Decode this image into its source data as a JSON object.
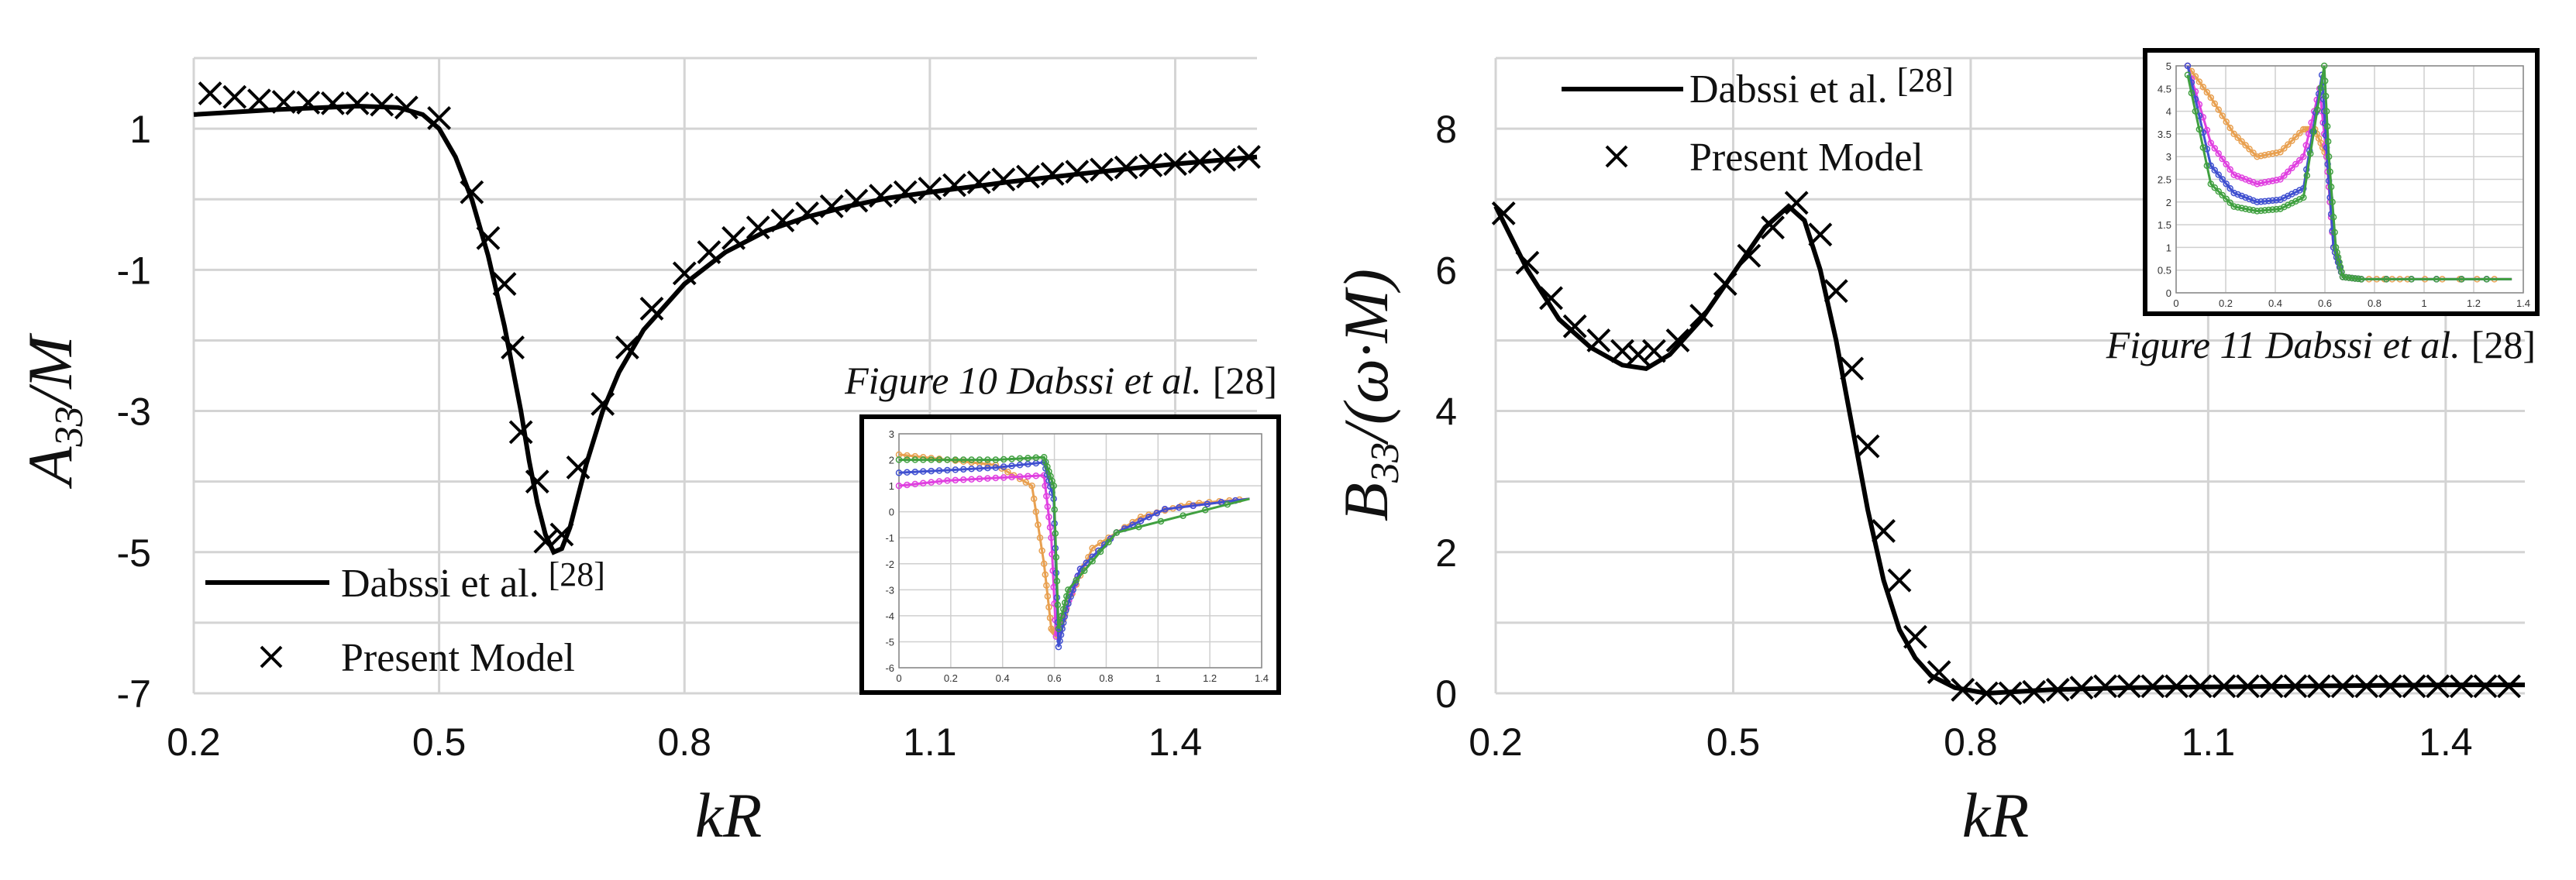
{
  "chart_data": [
    {
      "type": "line",
      "title": "",
      "xlabel": "kR",
      "ylabel": "A33/M",
      "ylabel_main": "A",
      "ylabel_sub": "33",
      "ylabel_rest": "/M",
      "xlim": [
        0.2,
        1.5
      ],
      "ylim": [
        -7,
        2
      ],
      "x_ticks": [
        0.2,
        0.5,
        0.8,
        1.1,
        1.4
      ],
      "x_tick_labels": [
        "0.2",
        "0.5",
        "0.8",
        "1.1",
        "1.4"
      ],
      "y_ticks": [
        -7,
        -5,
        -3,
        -1,
        1
      ],
      "y_tick_labels": [
        "-7",
        "-5",
        "-3",
        "-1",
        "1"
      ],
      "grid_y": [
        -7,
        -6,
        -5,
        -4,
        -3,
        -2,
        -1,
        0,
        1,
        2
      ],
      "legend_position": "bottom-left",
      "series": [
        {
          "name": "Dabssi et al. [28]",
          "name_text": "Dabssi et al.",
          "name_ref": "[28]",
          "style": "line",
          "x": [
            0.2,
            0.3,
            0.4,
            0.45,
            0.48,
            0.5,
            0.52,
            0.54,
            0.56,
            0.58,
            0.6,
            0.61,
            0.62,
            0.63,
            0.64,
            0.65,
            0.66,
            0.67,
            0.68,
            0.7,
            0.72,
            0.75,
            0.8,
            0.85,
            0.9,
            0.95,
            1.0,
            1.05,
            1.1,
            1.2,
            1.3,
            1.4,
            1.5
          ],
          "y": [
            1.2,
            1.27,
            1.32,
            1.3,
            1.2,
            1.0,
            0.6,
            0.0,
            -0.8,
            -1.8,
            -3.0,
            -3.7,
            -4.3,
            -4.75,
            -5.0,
            -4.95,
            -4.65,
            -4.2,
            -3.75,
            -3.0,
            -2.45,
            -1.85,
            -1.2,
            -0.75,
            -0.45,
            -0.25,
            -0.1,
            0.02,
            0.1,
            0.25,
            0.38,
            0.5,
            0.6
          ]
        },
        {
          "name": "Present Model",
          "style": "marker-x",
          "x": [
            0.22,
            0.25,
            0.28,
            0.31,
            0.34,
            0.37,
            0.4,
            0.43,
            0.46,
            0.5,
            0.54,
            0.56,
            0.58,
            0.59,
            0.6,
            0.62,
            0.63,
            0.65,
            0.67,
            0.7,
            0.73,
            0.76,
            0.8,
            0.83,
            0.86,
            0.89,
            0.92,
            0.95,
            0.98,
            1.01,
            1.04,
            1.07,
            1.1,
            1.13,
            1.16,
            1.19,
            1.22,
            1.25,
            1.28,
            1.31,
            1.34,
            1.37,
            1.4,
            1.43,
            1.46,
            1.49
          ],
          "y": [
            1.5,
            1.45,
            1.4,
            1.38,
            1.37,
            1.36,
            1.36,
            1.34,
            1.3,
            1.15,
            0.1,
            -0.55,
            -1.2,
            -2.1,
            -3.3,
            -4.0,
            -4.85,
            -4.75,
            -3.8,
            -2.9,
            -2.1,
            -1.55,
            -1.05,
            -0.75,
            -0.55,
            -0.4,
            -0.3,
            -0.2,
            -0.1,
            -0.02,
            0.05,
            0.1,
            0.15,
            0.2,
            0.24,
            0.28,
            0.32,
            0.36,
            0.39,
            0.42,
            0.45,
            0.48,
            0.5,
            0.53,
            0.56,
            0.6
          ]
        }
      ],
      "inset": {
        "caption_italic": "Figure 10 Dabssi et al.",
        "caption_ref": "[28]",
        "description": "embedded reference plot (Figure 10 of Dabssi et al.)",
        "xlim": [
          0,
          1.5
        ],
        "ylim": [
          -6,
          3
        ],
        "x_tick_labels": [
          "0",
          "0.2",
          "0.4",
          "0.6",
          "0.8",
          "1",
          "1.2",
          "1.4"
        ],
        "y_tick_labels": [
          "3",
          "2",
          "1",
          "0",
          "-1",
          "-2",
          "-3",
          "-4",
          "-5",
          "-6"
        ],
        "series": [
          {
            "color": "#e8a050",
            "x": [
              0.0,
              0.2,
              0.4,
              0.55,
              0.6,
              0.63,
              0.66,
              0.7,
              0.8,
              1.0,
              1.2,
              1.45
            ],
            "y": [
              2.2,
              2.0,
              1.8,
              1.0,
              -2.0,
              -4.5,
              -4.8,
              -3.5,
              -1.4,
              -0.2,
              0.3,
              0.5
            ]
          },
          {
            "color": "#e040e0",
            "x": [
              0.0,
              0.2,
              0.4,
              0.6,
              0.63,
              0.65,
              0.68,
              0.75,
              0.9,
              1.1,
              1.45
            ],
            "y": [
              1.0,
              1.2,
              1.3,
              1.4,
              -1.0,
              -4.8,
              -4.0,
              -2.2,
              -0.8,
              0.1,
              0.5
            ]
          },
          {
            "color": "#4050d0",
            "x": [
              0.0,
              0.2,
              0.4,
              0.6,
              0.64,
              0.66,
              0.69,
              0.75,
              0.9,
              1.1,
              1.45
            ],
            "y": [
              1.5,
              1.6,
              1.7,
              1.9,
              0.5,
              -5.2,
              -3.8,
              -2.2,
              -0.8,
              0.1,
              0.5
            ]
          },
          {
            "color": "#40a040",
            "x": [
              0.0,
              0.2,
              0.4,
              0.6,
              0.64,
              0.66,
              0.7,
              0.9,
              1.45
            ],
            "y": [
              2.0,
              2.0,
              2.0,
              2.1,
              1.0,
              -4.5,
              -3.0,
              -0.8,
              0.5
            ]
          }
        ]
      }
    },
    {
      "type": "line",
      "title": "",
      "xlabel": "kR",
      "ylabel": "B33/(ω·M)",
      "ylabel_main": "B",
      "ylabel_sub": "33",
      "ylabel_rest": "/(ω·M)",
      "xlim": [
        0.2,
        1.5
      ],
      "ylim": [
        0,
        9
      ],
      "x_ticks": [
        0.2,
        0.5,
        0.8,
        1.1,
        1.4
      ],
      "x_tick_labels": [
        "0.2",
        "0.5",
        "0.8",
        "1.1",
        "1.4"
      ],
      "y_ticks": [
        0,
        2,
        4,
        6,
        8
      ],
      "y_tick_labels": [
        "0",
        "2",
        "4",
        "6",
        "8"
      ],
      "grid_y": [
        0,
        1,
        2,
        3,
        4,
        5,
        6,
        7,
        8,
        9
      ],
      "legend_position": "top-left",
      "series": [
        {
          "name": "Dabssi et al. [28]",
          "name_text": "Dabssi et al.",
          "name_ref": "[28]",
          "style": "line",
          "x": [
            0.2,
            0.24,
            0.28,
            0.32,
            0.36,
            0.39,
            0.42,
            0.46,
            0.5,
            0.54,
            0.57,
            0.59,
            0.61,
            0.63,
            0.65,
            0.67,
            0.69,
            0.71,
            0.73,
            0.75,
            0.78,
            0.82,
            0.9,
            1.0,
            1.2,
            1.4,
            1.5
          ],
          "y": [
            6.9,
            6.0,
            5.3,
            4.9,
            4.65,
            4.6,
            4.8,
            5.3,
            5.95,
            6.6,
            6.9,
            6.7,
            6.0,
            5.0,
            3.8,
            2.6,
            1.6,
            0.9,
            0.5,
            0.25,
            0.08,
            0.0,
            0.05,
            0.08,
            0.1,
            0.12,
            0.12
          ]
        },
        {
          "name": "Present Model",
          "style": "marker-x",
          "x": [
            0.21,
            0.24,
            0.27,
            0.3,
            0.33,
            0.36,
            0.38,
            0.4,
            0.43,
            0.46,
            0.49,
            0.52,
            0.55,
            0.58,
            0.61,
            0.63,
            0.65,
            0.67,
            0.69,
            0.71,
            0.73,
            0.76,
            0.79,
            0.82,
            0.85,
            0.88,
            0.91,
            0.94,
            0.97,
            1.0,
            1.03,
            1.06,
            1.09,
            1.12,
            1.15,
            1.18,
            1.21,
            1.24,
            1.27,
            1.3,
            1.33,
            1.36,
            1.39,
            1.42,
            1.45,
            1.48
          ],
          "y": [
            6.8,
            6.1,
            5.6,
            5.2,
            5.0,
            4.85,
            4.8,
            4.85,
            5.0,
            5.35,
            5.8,
            6.2,
            6.6,
            6.95,
            6.5,
            5.7,
            4.6,
            3.5,
            2.3,
            1.6,
            0.8,
            0.3,
            0.05,
            0.0,
            0.0,
            0.02,
            0.05,
            0.08,
            0.1,
            0.1,
            0.1,
            0.1,
            0.1,
            0.1,
            0.1,
            0.1,
            0.1,
            0.1,
            0.1,
            0.1,
            0.1,
            0.1,
            0.1,
            0.1,
            0.1,
            0.1
          ]
        }
      ],
      "inset": {
        "caption_italic": "Figure 11 Dabssi et al.",
        "caption_ref": "[28]",
        "description": "embedded reference plot (Figure 11 of Dabssi et al.)",
        "xlim": [
          0,
          1.5
        ],
        "ylim": [
          0,
          5
        ],
        "x_tick_labels": [
          "0",
          "0.2",
          "0.4",
          "0.6",
          "0.8",
          "1",
          "1.2",
          "1.4"
        ],
        "y_tick_labels": [
          "5",
          "4.5",
          "4",
          "3.5",
          "3",
          "2.5",
          "2",
          "1.5",
          "1",
          "0.5",
          "0"
        ],
        "series": [
          {
            "color": "#e8a050",
            "x": [
              0.05,
              0.15,
              0.25,
              0.35,
              0.45,
              0.55,
              0.6,
              0.65,
              0.68,
              0.72,
              0.8,
              1.0,
              1.45
            ],
            "y": [
              5.0,
              4.3,
              3.5,
              3.0,
              3.1,
              3.6,
              3.6,
              3.0,
              1.0,
              0.35,
              0.3,
              0.3,
              0.3
            ]
          },
          {
            "color": "#e040e0",
            "x": [
              0.05,
              0.15,
              0.25,
              0.35,
              0.45,
              0.55,
              0.62,
              0.65,
              0.68,
              0.72,
              0.8,
              1.45
            ],
            "y": [
              5.0,
              3.3,
              2.6,
              2.4,
              2.5,
              3.0,
              4.5,
              3.0,
              1.0,
              0.35,
              0.3,
              0.3
            ]
          },
          {
            "color": "#4050d0",
            "x": [
              0.05,
              0.15,
              0.25,
              0.35,
              0.45,
              0.55,
              0.63,
              0.65,
              0.68,
              0.72,
              0.8,
              1.45
            ],
            "y": [
              5.0,
              2.8,
              2.2,
              2.0,
              2.05,
              2.3,
              4.8,
              3.2,
              1.0,
              0.35,
              0.3,
              0.3
            ]
          },
          {
            "color": "#40a040",
            "x": [
              0.05,
              0.15,
              0.25,
              0.35,
              0.45,
              0.55,
              0.64,
              0.66,
              0.69,
              0.72,
              0.8,
              1.45
            ],
            "y": [
              4.8,
              2.4,
              1.9,
              1.8,
              1.85,
              2.1,
              5.0,
              3.0,
              1.0,
              0.35,
              0.3,
              0.3
            ]
          }
        ]
      }
    }
  ]
}
